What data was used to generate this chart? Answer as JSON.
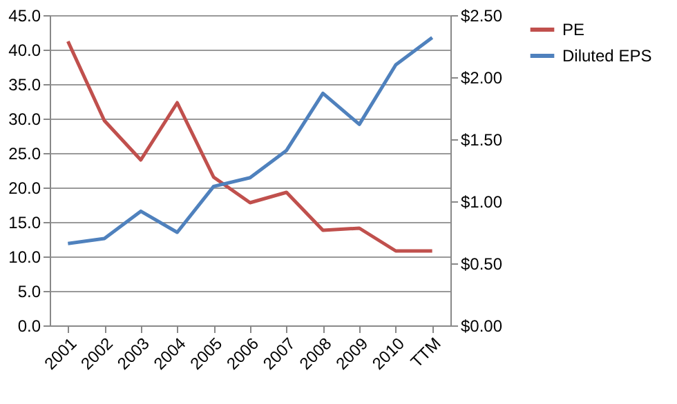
{
  "chart_data": {
    "type": "line",
    "categories": [
      "2001",
      "2002",
      "2003",
      "2004",
      "2005",
      "2006",
      "2007",
      "2008",
      "2009",
      "2010",
      "TTM"
    ],
    "series": [
      {
        "name": "PE",
        "color": "#c0504d",
        "values": [
          41.2,
          29.7,
          24.0,
          32.3,
          21.5,
          17.8,
          19.3,
          13.8,
          14.1,
          10.8,
          10.8
        ]
      },
      {
        "name": "Diluted EPS",
        "color": "#4f81bd",
        "axis": "y2",
        "values": [
          0.66,
          0.7,
          0.92,
          0.75,
          1.12,
          1.19,
          1.41,
          1.87,
          1.62,
          2.1,
          2.32
        ]
      }
    ],
    "ylim": [
      0,
      45
    ],
    "yticks": [
      {
        "value": 0,
        "label": "0.0"
      },
      {
        "value": 5,
        "label": "5.0"
      },
      {
        "value": 10,
        "label": "10.0"
      },
      {
        "value": 15,
        "label": "15.0"
      },
      {
        "value": 20,
        "label": "20.0"
      },
      {
        "value": 25,
        "label": "25.0"
      },
      {
        "value": 30,
        "label": "30.0"
      },
      {
        "value": 35,
        "label": "35.0"
      },
      {
        "value": 40,
        "label": "40.0"
      },
      {
        "value": 45,
        "label": "45.0"
      }
    ],
    "y2lim": [
      0,
      2.5
    ],
    "y2ticks": [
      {
        "value": 0,
        "label": "$0.00"
      },
      {
        "value": 0.5,
        "label": "$0.50"
      },
      {
        "value": 1,
        "label": "$1.00"
      },
      {
        "value": 1.5,
        "label": "$1.50"
      },
      {
        "value": 2,
        "label": "$2.00"
      },
      {
        "value": 2.5,
        "label": "$2.50"
      }
    ],
    "grid": "y",
    "legend": "right",
    "marker": "none",
    "line_style": "solid"
  }
}
